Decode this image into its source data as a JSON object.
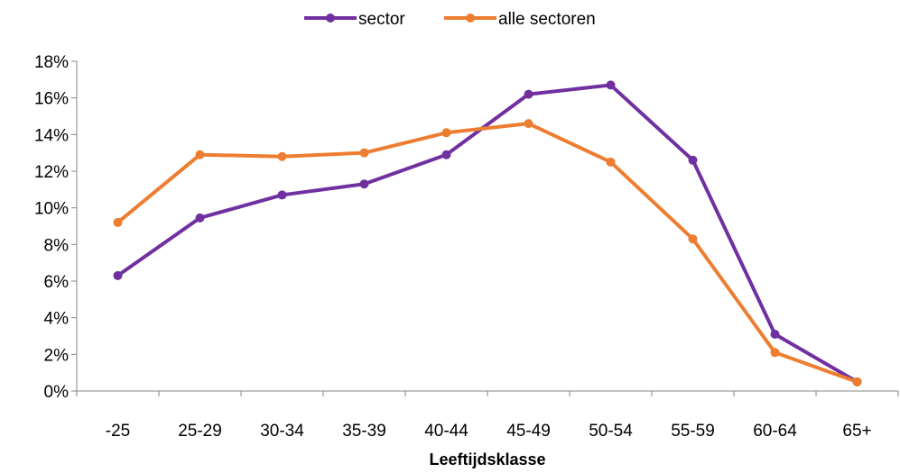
{
  "chart_data": {
    "type": "line",
    "categories": [
      "-25",
      "25-29",
      "30-34",
      "35-39",
      "40-44",
      "45-49",
      "50-54",
      "55-59",
      "60-64",
      "65+"
    ],
    "series": [
      {
        "name": "sector",
        "color": "#7030A0",
        "values": [
          6.3,
          9.45,
          10.7,
          11.3,
          12.9,
          16.2,
          16.7,
          12.6,
          3.1,
          0.5
        ]
      },
      {
        "name": "alle sectoren",
        "color": "#ED7D31",
        "values": [
          9.2,
          12.9,
          12.8,
          13.0,
          14.1,
          14.6,
          12.5,
          8.3,
          2.1,
          0.5
        ]
      }
    ],
    "yticks": [
      "0%",
      "2%",
      "4%",
      "6%",
      "8%",
      "10%",
      "12%",
      "14%",
      "16%",
      "18%"
    ],
    "ylim": [
      0,
      18
    ],
    "xlabel": "Leeftijdsklasse",
    "ylabel": "",
    "title": "",
    "legend_position": "top",
    "grid": false
  }
}
